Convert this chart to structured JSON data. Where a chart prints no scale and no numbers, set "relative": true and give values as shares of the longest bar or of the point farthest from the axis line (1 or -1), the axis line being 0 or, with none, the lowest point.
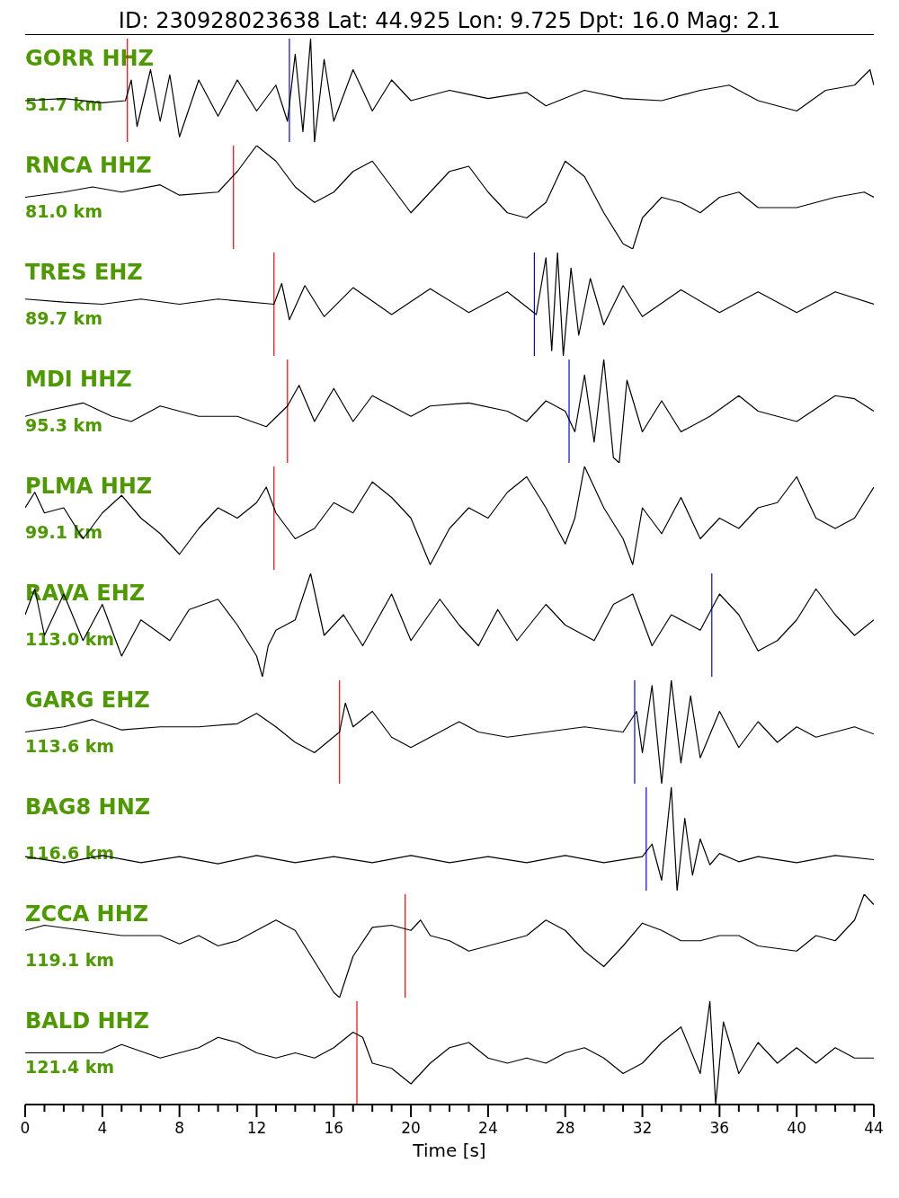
{
  "chart_data": [
    {
      "type": "line",
      "title": "ID: 230928023638 Lat:  44.925 Lon:   9.725 Dpt:    16.0 Mag:   2.1",
      "annotations": [
        "GORR HHZ",
        "51.7 km"
      ],
      "relative": true,
      "tick_labels": false,
      "xlim": [
        0,
        44
      ],
      "color": "#000000",
      "x": [
        0,
        2,
        4,
        5.2,
        5.5,
        5.8,
        6.5,
        7,
        7.5,
        8,
        9,
        10,
        11,
        12,
        13,
        13.6,
        14,
        14.4,
        14.8,
        15,
        15.5,
        16,
        17,
        18,
        19,
        20,
        22,
        24,
        26,
        27,
        29,
        31,
        33,
        35,
        36.5,
        38,
        40,
        41.5,
        43,
        43.8,
        44
      ],
      "values": [
        0.4,
        0.42,
        0.38,
        0.4,
        0.6,
        0.15,
        0.7,
        0.2,
        0.65,
        0.05,
        0.6,
        0.25,
        0.6,
        0.3,
        0.55,
        0.2,
        0.85,
        0.1,
        1,
        0,
        0.8,
        0.2,
        0.7,
        0.3,
        0.6,
        0.4,
        0.5,
        0.42,
        0.48,
        0.35,
        0.5,
        0.42,
        0.4,
        0.5,
        0.55,
        0.4,
        0.3,
        0.5,
        0.55,
        0.7,
        0.55
      ],
      "ref_lines": [
        {
          "axis": "x",
          "value": 5.3,
          "color": "#ff0000"
        },
        {
          "axis": "x",
          "value": 13.7,
          "color": "#0000ff"
        }
      ]
    },
    {
      "type": "line",
      "annotations": [
        "RNCA HHZ",
        "81.0 km"
      ],
      "relative": true,
      "tick_labels": false,
      "xlim": [
        0,
        44
      ],
      "color": "#000000",
      "x": [
        0,
        2,
        3.5,
        5,
        7,
        8,
        10,
        11,
        12,
        13,
        14,
        15,
        16,
        17,
        18,
        19,
        20,
        21,
        22,
        23,
        24,
        25,
        26,
        27,
        28,
        29,
        30,
        31,
        31.5,
        32,
        33,
        34,
        35,
        36,
        37,
        38,
        40,
        42,
        43.5,
        44
      ],
      "values": [
        0.5,
        0.55,
        0.6,
        0.55,
        0.62,
        0.52,
        0.55,
        0.75,
        1,
        0.85,
        0.6,
        0.45,
        0.55,
        0.75,
        0.85,
        0.6,
        0.35,
        0.55,
        0.75,
        0.8,
        0.55,
        0.35,
        0.3,
        0.45,
        0.85,
        0.7,
        0.35,
        0.05,
        0,
        0.3,
        0.5,
        0.45,
        0.35,
        0.5,
        0.55,
        0.4,
        0.4,
        0.5,
        0.55,
        0.5
      ],
      "ref_lines": [
        {
          "axis": "x",
          "value": 10.8,
          "color": "#ff0000"
        }
      ]
    },
    {
      "type": "line",
      "annotations": [
        "TRES EHZ",
        "89.7 km"
      ],
      "relative": true,
      "tick_labels": false,
      "xlim": [
        0,
        44
      ],
      "color": "#000000",
      "x": [
        0,
        2,
        4,
        6,
        8,
        10,
        12.9,
        13.3,
        13.7,
        14.5,
        15.5,
        17,
        19,
        21,
        23,
        25,
        26.5,
        27,
        27.3,
        27.6,
        27.9,
        28.3,
        28.7,
        29.3,
        30,
        31,
        32,
        34,
        36,
        38,
        40,
        42,
        44
      ],
      "values": [
        0.55,
        0.52,
        0.5,
        0.55,
        0.5,
        0.55,
        0.5,
        0.7,
        0.35,
        0.68,
        0.38,
        0.66,
        0.4,
        0.65,
        0.42,
        0.62,
        0.4,
        0.95,
        0.05,
        1,
        0,
        0.85,
        0.2,
        0.75,
        0.3,
        0.68,
        0.38,
        0.64,
        0.42,
        0.62,
        0.42,
        0.62,
        0.5
      ],
      "ref_lines": [
        {
          "axis": "x",
          "value": 12.9,
          "color": "#ff0000"
        },
        {
          "axis": "x",
          "value": 26.4,
          "color": "#0000ff"
        }
      ]
    },
    {
      "type": "line",
      "annotations": [
        "MDI HHZ",
        "95.3 km"
      ],
      "relative": true,
      "tick_labels": false,
      "xlim": [
        0,
        44
      ],
      "color": "#000000",
      "x": [
        0,
        1,
        3,
        4.5,
        5.5,
        7,
        9,
        11,
        12.5,
        13.6,
        14.2,
        15,
        16,
        17,
        18,
        20,
        21,
        23,
        25,
        26,
        27,
        28,
        28.5,
        29,
        29.5,
        30,
        30.5,
        30.8,
        31.2,
        32,
        33,
        34,
        35.5,
        37,
        38,
        40,
        42,
        43,
        44
      ],
      "values": [
        0.45,
        0.5,
        0.58,
        0.45,
        0.4,
        0.55,
        0.45,
        0.45,
        0.35,
        0.55,
        0.75,
        0.4,
        0.72,
        0.4,
        0.65,
        0.45,
        0.55,
        0.58,
        0.5,
        0.4,
        0.6,
        0.5,
        0.3,
        0.85,
        0.2,
        1,
        0.05,
        0,
        0.8,
        0.3,
        0.6,
        0.3,
        0.45,
        0.65,
        0.5,
        0.4,
        0.65,
        0.62,
        0.5
      ],
      "ref_lines": [
        {
          "axis": "x",
          "value": 13.6,
          "color": "#ff0000"
        },
        {
          "axis": "x",
          "value": 28.2,
          "color": "#0000ff"
        }
      ]
    },
    {
      "type": "line",
      "annotations": [
        "PLMA HHZ",
        "99.1 km"
      ],
      "relative": true,
      "tick_labels": false,
      "xlim": [
        0,
        44
      ],
      "color": "#000000",
      "x": [
        0,
        0.5,
        1,
        2,
        3,
        4,
        5,
        6,
        7,
        8,
        9,
        10,
        11,
        12,
        12.5,
        13,
        14,
        15,
        16,
        17,
        18,
        19,
        20,
        21,
        22,
        23,
        24,
        25,
        26,
        27,
        28,
        28.5,
        29,
        30,
        31,
        31.5,
        32,
        33,
        34,
        35,
        36,
        37,
        38,
        39,
        40,
        41,
        42,
        43,
        44
      ],
      "values": [
        0.6,
        0.75,
        0.55,
        0.6,
        0.3,
        0.55,
        0.72,
        0.5,
        0.35,
        0.15,
        0.4,
        0.6,
        0.5,
        0.65,
        0.8,
        0.55,
        0.3,
        0.4,
        0.65,
        0.55,
        0.85,
        0.7,
        0.5,
        0.05,
        0.4,
        0.6,
        0.5,
        0.75,
        0.9,
        0.6,
        0.25,
        0.5,
        1,
        0.6,
        0.3,
        0.05,
        0.6,
        0.35,
        0.7,
        0.3,
        0.5,
        0.4,
        0.6,
        0.65,
        0.9,
        0.5,
        0.4,
        0.5,
        0.8
      ],
      "ref_lines": [
        {
          "axis": "x",
          "value": 12.9,
          "color": "#ff0000"
        }
      ]
    },
    {
      "type": "line",
      "annotations": [
        "RAVA EHZ",
        "113.0 km"
      ],
      "relative": true,
      "tick_labels": false,
      "xlim": [
        0,
        44
      ],
      "color": "#000000",
      "x": [
        0,
        0.5,
        1,
        2,
        3,
        4,
        5,
        6,
        7.5,
        8.5,
        10,
        11,
        12,
        12.3,
        12.6,
        13,
        14,
        14.8,
        15.5,
        16.5,
        17.5,
        19,
        20,
        21.5,
        22.5,
        23.5,
        24.5,
        25.5,
        27,
        28,
        29.5,
        30.5,
        31.5,
        32.5,
        33.5,
        35,
        36,
        37,
        38,
        39,
        40,
        41,
        42,
        43,
        44
      ],
      "values": [
        0.6,
        0.85,
        0.4,
        0.8,
        0.35,
        0.7,
        0.2,
        0.55,
        0.35,
        0.65,
        0.75,
        0.5,
        0.2,
        0,
        0.3,
        0.45,
        0.55,
        1,
        0.4,
        0.6,
        0.3,
        0.8,
        0.35,
        0.75,
        0.5,
        0.3,
        0.65,
        0.35,
        0.7,
        0.5,
        0.35,
        0.7,
        0.8,
        0.3,
        0.6,
        0.45,
        0.8,
        0.6,
        0.25,
        0.35,
        0.55,
        0.85,
        0.6,
        0.4,
        0.55
      ],
      "ref_lines": [
        {
          "axis": "x",
          "value": 35.6,
          "color": "#0000ff"
        }
      ]
    },
    {
      "type": "line",
      "annotations": [
        "GARG EHZ",
        "113.6 km"
      ],
      "relative": true,
      "tick_labels": false,
      "xlim": [
        0,
        44
      ],
      "color": "#000000",
      "x": [
        0,
        2,
        3.5,
        5,
        7,
        9,
        11,
        12,
        13,
        14,
        15,
        16.3,
        16.6,
        17,
        18,
        19,
        20,
        21,
        22.5,
        23.5,
        25,
        27,
        29,
        31,
        31.7,
        32,
        32.5,
        33,
        33.5,
        34,
        34.5,
        35,
        36,
        37,
        38,
        39,
        40,
        41,
        42,
        43,
        44
      ],
      "values": [
        0.5,
        0.55,
        0.62,
        0.52,
        0.55,
        0.55,
        0.58,
        0.68,
        0.55,
        0.4,
        0.3,
        0.5,
        0.78,
        0.55,
        0.7,
        0.45,
        0.35,
        0.45,
        0.6,
        0.5,
        0.45,
        0.5,
        0.55,
        0.5,
        0.7,
        0.3,
        0.95,
        0,
        1,
        0.2,
        0.85,
        0.25,
        0.7,
        0.35,
        0.6,
        0.4,
        0.55,
        0.45,
        0.5,
        0.55,
        0.48
      ],
      "ref_lines": [
        {
          "axis": "x",
          "value": 16.3,
          "color": "#ff0000"
        },
        {
          "axis": "x",
          "value": 31.6,
          "color": "#0000ff"
        }
      ]
    },
    {
      "type": "line",
      "annotations": [
        "BAG8 HNZ",
        "116.6 km"
      ],
      "relative": true,
      "tick_labels": false,
      "xlim": [
        0,
        44
      ],
      "color": "#000000",
      "x": [
        0,
        2,
        4,
        6,
        8,
        10,
        12,
        14,
        16,
        18,
        20,
        22,
        24,
        26,
        28,
        30,
        32,
        32.5,
        33,
        33.5,
        33.8,
        34.2,
        34.6,
        35,
        35.5,
        36,
        37,
        38,
        40,
        42,
        44
      ],
      "values": [
        0.33,
        0.27,
        0.34,
        0.27,
        0.33,
        0.26,
        0.34,
        0.27,
        0.33,
        0.27,
        0.34,
        0.27,
        0.33,
        0.27,
        0.34,
        0.27,
        0.33,
        0.45,
        0.1,
        1,
        0,
        0.7,
        0.15,
        0.5,
        0.25,
        0.36,
        0.28,
        0.33,
        0.27,
        0.34,
        0.3
      ],
      "ref_lines": [
        {
          "axis": "x",
          "value": 32.2,
          "color": "#0000ff"
        }
      ]
    },
    {
      "type": "line",
      "annotations": [
        "ZCCA HHZ",
        "119.1 km"
      ],
      "relative": true,
      "tick_labels": false,
      "xlim": [
        0,
        44
      ],
      "color": "#000000",
      "x": [
        0,
        1,
        3,
        5,
        7,
        8,
        9,
        10,
        11,
        12,
        13,
        14,
        15,
        16,
        16.3,
        17,
        18,
        19,
        20,
        20.5,
        21,
        22,
        23,
        24,
        26,
        27,
        28,
        29,
        30,
        31,
        32,
        33,
        34,
        35,
        36,
        37,
        38,
        40,
        41,
        42,
        43,
        43.5,
        44
      ],
      "values": [
        0.65,
        0.7,
        0.65,
        0.6,
        0.6,
        0.52,
        0.6,
        0.5,
        0.55,
        0.65,
        0.75,
        0.65,
        0.35,
        0.05,
        0,
        0.4,
        0.68,
        0.7,
        0.65,
        0.75,
        0.6,
        0.55,
        0.45,
        0.5,
        0.6,
        0.75,
        0.65,
        0.45,
        0.3,
        0.5,
        0.72,
        0.65,
        0.55,
        0.55,
        0.6,
        0.6,
        0.5,
        0.45,
        0.6,
        0.55,
        0.75,
        1,
        0.9
      ],
      "ref_lines": [
        {
          "axis": "x",
          "value": 19.7,
          "color": "#ff0000"
        }
      ]
    },
    {
      "type": "line",
      "annotations": [
        "BALD HHZ",
        "121.4 km"
      ],
      "relative": true,
      "tick_labels": "x",
      "xlim": [
        0,
        44
      ],
      "xlabel": "Time [s]",
      "color": "#000000",
      "xticks": [
        0,
        {
          "value": 1,
          "label": null
        },
        {
          "value": 2,
          "label": null
        },
        {
          "value": 3,
          "label": null
        },
        4,
        {
          "value": 5,
          "label": null
        },
        {
          "value": 6,
          "label": null
        },
        {
          "value": 7,
          "label": null
        },
        8,
        {
          "value": 9,
          "label": null
        },
        {
          "value": 10,
          "label": null
        },
        {
          "value": 11,
          "label": null
        },
        12,
        {
          "value": 13,
          "label": null
        },
        {
          "value": 14,
          "label": null
        },
        {
          "value": 15,
          "label": null
        },
        16,
        {
          "value": 17,
          "label": null
        },
        {
          "value": 18,
          "label": null
        },
        {
          "value": 19,
          "label": null
        },
        20,
        {
          "value": 21,
          "label": null
        },
        {
          "value": 22,
          "label": null
        },
        {
          "value": 23,
          "label": null
        },
        24,
        {
          "value": 25,
          "label": null
        },
        {
          "value": 26,
          "label": null
        },
        {
          "value": 27,
          "label": null
        },
        28,
        {
          "value": 29,
          "label": null
        },
        {
          "value": 30,
          "label": null
        },
        {
          "value": 31,
          "label": null
        },
        32,
        {
          "value": 33,
          "label": null
        },
        {
          "value": 34,
          "label": null
        },
        {
          "value": 35,
          "label": null
        },
        36,
        {
          "value": 37,
          "label": null
        },
        {
          "value": 38,
          "label": null
        },
        {
          "value": 39,
          "label": null
        },
        40,
        {
          "value": 41,
          "label": null
        },
        {
          "value": 42,
          "label": null
        },
        {
          "value": 43,
          "label": null
        },
        44
      ],
      "x": [
        0,
        2,
        4,
        5,
        7,
        9,
        10,
        11,
        12,
        13,
        14,
        15,
        16,
        17,
        17.5,
        18,
        19,
        20,
        21,
        22,
        23,
        24,
        25,
        26,
        27,
        28,
        29,
        30,
        31,
        32,
        33,
        34,
        35,
        35.5,
        35.8,
        36.2,
        37,
        38,
        39,
        40,
        41,
        42,
        43,
        44
      ],
      "values": [
        0.5,
        0.5,
        0.5,
        0.58,
        0.45,
        0.55,
        0.65,
        0.6,
        0.5,
        0.45,
        0.5,
        0.45,
        0.55,
        0.7,
        0.65,
        0.4,
        0.35,
        0.2,
        0.4,
        0.55,
        0.6,
        0.45,
        0.4,
        0.45,
        0.4,
        0.5,
        0.55,
        0.45,
        0.3,
        0.4,
        0.6,
        0.75,
        0.3,
        1,
        0,
        0.8,
        0.3,
        0.6,
        0.4,
        0.55,
        0.4,
        0.55,
        0.45,
        0.45
      ],
      "ref_lines": [
        {
          "axis": "x",
          "value": 17.2,
          "color": "#ff0000"
        }
      ]
    }
  ]
}
